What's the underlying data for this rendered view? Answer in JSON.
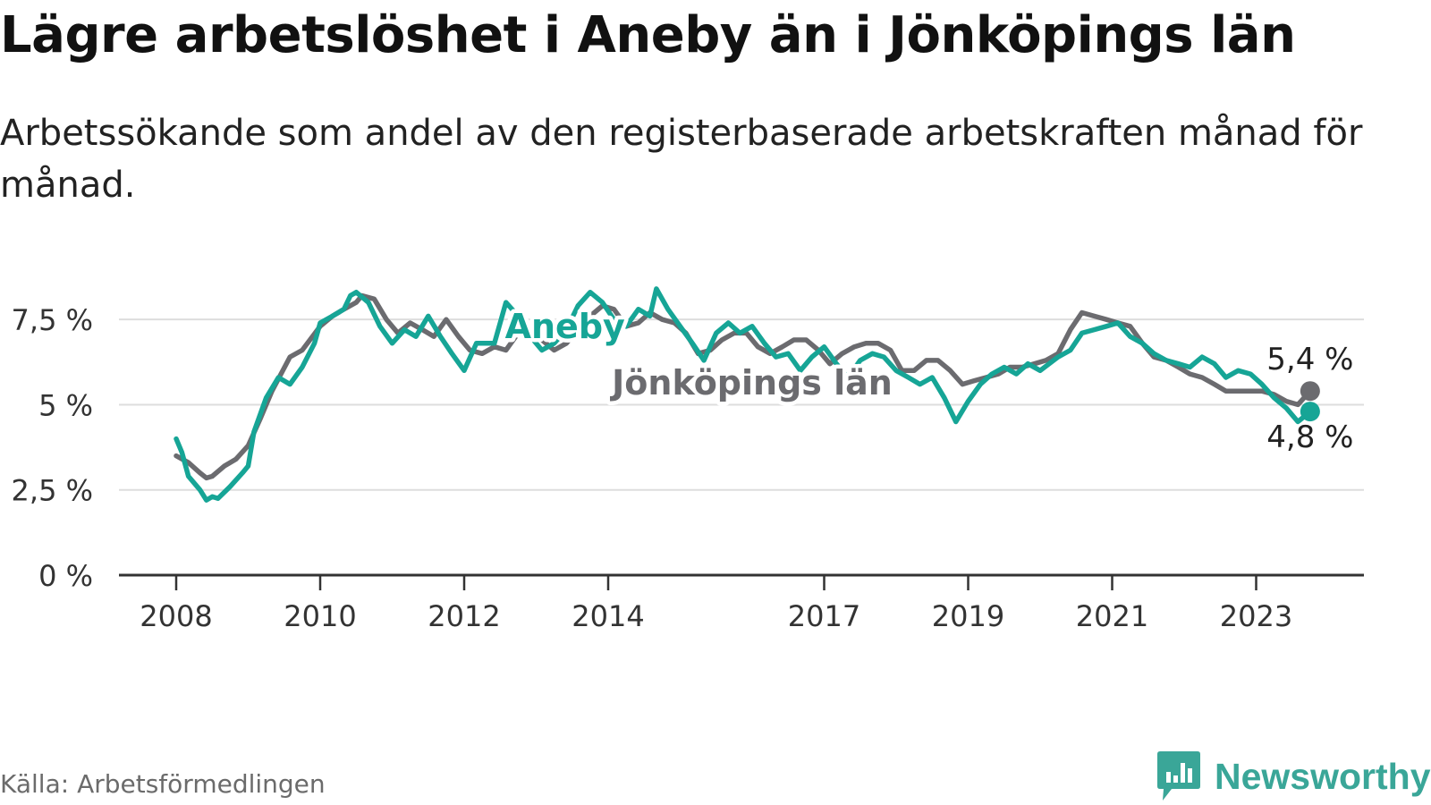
{
  "title": "Lägre arbetslöshet i Aneby än i Jönköpings län",
  "subtitle": "Arbetssökande som andel av den registerbaserade arbetskraften månad för månad.",
  "source": "Källa: Arbetsförmedlingen",
  "brand": "Newsworthy",
  "colors": {
    "aneby": "#16a596",
    "lan": "#6b6b6f",
    "grid": "#dddddd",
    "axis": "#333333",
    "brand": "#3aa698"
  },
  "chart_data": {
    "type": "line",
    "title": "Lägre arbetslöshet i Aneby än i Jönköpings län",
    "xlabel": "",
    "ylabel": "",
    "x_range": [
      2007.6,
      2024.2
    ],
    "ylim": [
      0,
      9
    ],
    "grid": true,
    "x_ticks": [
      {
        "value": 2008,
        "label": "2008"
      },
      {
        "value": 2010,
        "label": "2010"
      },
      {
        "value": 2012,
        "label": "2012"
      },
      {
        "value": 2014,
        "label": "2014"
      },
      {
        "value": 2017,
        "label": "2017"
      },
      {
        "value": 2019,
        "label": "2019"
      },
      {
        "value": 2021,
        "label": "2021"
      },
      {
        "value": 2023,
        "label": "2023"
      }
    ],
    "y_ticks": [
      {
        "value": 0,
        "label": "0 %"
      },
      {
        "value": 2.5,
        "label": "2,5 %"
      },
      {
        "value": 5,
        "label": "5 %"
      },
      {
        "value": 7.5,
        "label": "7,5 %"
      }
    ],
    "series": [
      {
        "name": "Jönköpings län",
        "label": "Jönköpings län",
        "label_at": [
          2016.0,
          5.3
        ],
        "end_label": "5,4 %",
        "end_value": 5.4,
        "points": [
          [
            2008.0,
            3.5
          ],
          [
            2008.17,
            3.3
          ],
          [
            2008.33,
            3.0
          ],
          [
            2008.42,
            2.85
          ],
          [
            2008.5,
            2.9
          ],
          [
            2008.67,
            3.2
          ],
          [
            2008.83,
            3.4
          ],
          [
            2009.0,
            3.8
          ],
          [
            2009.17,
            4.6
          ],
          [
            2009.33,
            5.4
          ],
          [
            2009.58,
            6.4
          ],
          [
            2009.75,
            6.6
          ],
          [
            2010.0,
            7.3
          ],
          [
            2010.17,
            7.6
          ],
          [
            2010.33,
            7.8
          ],
          [
            2010.5,
            8.0
          ],
          [
            2010.58,
            8.2
          ],
          [
            2010.75,
            8.1
          ],
          [
            2010.92,
            7.5
          ],
          [
            2011.08,
            7.1
          ],
          [
            2011.25,
            7.4
          ],
          [
            2011.42,
            7.2
          ],
          [
            2011.58,
            7.0
          ],
          [
            2011.75,
            7.5
          ],
          [
            2011.92,
            7.0
          ],
          [
            2012.08,
            6.6
          ],
          [
            2012.25,
            6.5
          ],
          [
            2012.42,
            6.7
          ],
          [
            2012.58,
            6.6
          ],
          [
            2012.75,
            7.1
          ],
          [
            2012.92,
            7.2
          ],
          [
            2013.08,
            6.9
          ],
          [
            2013.25,
            6.6
          ],
          [
            2013.42,
            6.8
          ],
          [
            2013.58,
            7.2
          ],
          [
            2013.75,
            7.6
          ],
          [
            2013.92,
            7.9
          ],
          [
            2014.08,
            7.8
          ],
          [
            2014.25,
            7.3
          ],
          [
            2014.42,
            7.4
          ],
          [
            2014.58,
            7.7
          ],
          [
            2014.75,
            7.5
          ],
          [
            2014.92,
            7.4
          ],
          [
            2015.08,
            7.1
          ],
          [
            2015.25,
            6.5
          ],
          [
            2015.42,
            6.6
          ],
          [
            2015.58,
            6.9
          ],
          [
            2015.75,
            7.1
          ],
          [
            2015.92,
            7.1
          ],
          [
            2016.08,
            6.7
          ],
          [
            2016.25,
            6.5
          ],
          [
            2016.42,
            6.7
          ],
          [
            2016.58,
            6.9
          ],
          [
            2016.75,
            6.9
          ],
          [
            2016.92,
            6.6
          ],
          [
            2017.08,
            6.2
          ],
          [
            2017.25,
            6.5
          ],
          [
            2017.42,
            6.7
          ],
          [
            2017.58,
            6.8
          ],
          [
            2017.75,
            6.8
          ],
          [
            2017.92,
            6.6
          ],
          [
            2018.08,
            6.0
          ],
          [
            2018.25,
            6.0
          ],
          [
            2018.42,
            6.3
          ],
          [
            2018.58,
            6.3
          ],
          [
            2018.75,
            6.0
          ],
          [
            2018.92,
            5.6
          ],
          [
            2019.08,
            5.7
          ],
          [
            2019.25,
            5.8
          ],
          [
            2019.42,
            5.9
          ],
          [
            2019.58,
            6.1
          ],
          [
            2019.75,
            6.1
          ],
          [
            2019.92,
            6.2
          ],
          [
            2020.08,
            6.3
          ],
          [
            2020.25,
            6.5
          ],
          [
            2020.42,
            7.2
          ],
          [
            2020.58,
            7.7
          ],
          [
            2020.75,
            7.6
          ],
          [
            2020.92,
            7.5
          ],
          [
            2021.08,
            7.4
          ],
          [
            2021.25,
            7.3
          ],
          [
            2021.42,
            6.8
          ],
          [
            2021.58,
            6.4
          ],
          [
            2021.75,
            6.3
          ],
          [
            2021.92,
            6.1
          ],
          [
            2022.08,
            5.9
          ],
          [
            2022.25,
            5.8
          ],
          [
            2022.42,
            5.6
          ],
          [
            2022.58,
            5.4
          ],
          [
            2022.75,
            5.4
          ],
          [
            2022.92,
            5.4
          ],
          [
            2023.08,
            5.4
          ],
          [
            2023.25,
            5.3
          ],
          [
            2023.42,
            5.1
          ],
          [
            2023.58,
            5.0
          ],
          [
            2023.75,
            5.4
          ]
        ]
      },
      {
        "name": "Aneby",
        "label": "Aneby",
        "label_at": [
          2013.4,
          6.95
        ],
        "end_label": "4,8 %",
        "end_value": 4.8,
        "points": [
          [
            2008.0,
            4.0
          ],
          [
            2008.08,
            3.6
          ],
          [
            2008.17,
            2.9
          ],
          [
            2008.33,
            2.5
          ],
          [
            2008.42,
            2.2
          ],
          [
            2008.5,
            2.3
          ],
          [
            2008.58,
            2.25
          ],
          [
            2008.75,
            2.6
          ],
          [
            2008.92,
            3.0
          ],
          [
            2009.0,
            3.2
          ],
          [
            2009.08,
            4.2
          ],
          [
            2009.25,
            5.2
          ],
          [
            2009.42,
            5.8
          ],
          [
            2009.58,
            5.6
          ],
          [
            2009.75,
            6.1
          ],
          [
            2009.92,
            6.8
          ],
          [
            2010.0,
            7.4
          ],
          [
            2010.17,
            7.6
          ],
          [
            2010.33,
            7.8
          ],
          [
            2010.42,
            8.2
          ],
          [
            2010.5,
            8.3
          ],
          [
            2010.67,
            8.0
          ],
          [
            2010.83,
            7.3
          ],
          [
            2011.0,
            6.8
          ],
          [
            2011.17,
            7.2
          ],
          [
            2011.33,
            7.0
          ],
          [
            2011.5,
            7.6
          ],
          [
            2011.67,
            7.0
          ],
          [
            2011.83,
            6.5
          ],
          [
            2012.0,
            6.0
          ],
          [
            2012.17,
            6.8
          ],
          [
            2012.42,
            6.8
          ],
          [
            2012.58,
            8.0
          ],
          [
            2012.75,
            7.6
          ],
          [
            2012.92,
            7.0
          ],
          [
            2013.08,
            6.6
          ],
          [
            2013.25,
            6.8
          ],
          [
            2013.42,
            7.2
          ],
          [
            2013.58,
            7.9
          ],
          [
            2013.75,
            8.3
          ],
          [
            2013.92,
            8.0
          ],
          [
            2014.08,
            7.5
          ],
          [
            2014.25,
            7.3
          ],
          [
            2014.42,
            7.8
          ],
          [
            2014.58,
            7.6
          ],
          [
            2014.67,
            8.4
          ],
          [
            2014.83,
            7.8
          ],
          [
            2015.0,
            7.3
          ],
          [
            2015.17,
            6.8
          ],
          [
            2015.33,
            6.3
          ],
          [
            2015.5,
            7.1
          ],
          [
            2015.67,
            7.4
          ],
          [
            2015.83,
            7.1
          ],
          [
            2016.0,
            7.3
          ],
          [
            2016.17,
            6.8
          ],
          [
            2016.33,
            6.4
          ],
          [
            2016.5,
            6.5
          ],
          [
            2016.67,
            6.0
          ],
          [
            2016.83,
            6.4
          ],
          [
            2017.0,
            6.7
          ],
          [
            2017.17,
            6.2
          ],
          [
            2017.33,
            5.8
          ],
          [
            2017.5,
            6.3
          ],
          [
            2017.67,
            6.5
          ],
          [
            2017.83,
            6.4
          ],
          [
            2018.0,
            6.0
          ],
          [
            2018.17,
            5.8
          ],
          [
            2018.33,
            5.6
          ],
          [
            2018.5,
            5.8
          ],
          [
            2018.67,
            5.2
          ],
          [
            2018.83,
            4.5
          ],
          [
            2019.0,
            5.1
          ],
          [
            2019.17,
            5.6
          ],
          [
            2019.33,
            5.9
          ],
          [
            2019.5,
            6.1
          ],
          [
            2019.67,
            5.9
          ],
          [
            2019.83,
            6.2
          ],
          [
            2020.0,
            6.0
          ],
          [
            2020.25,
            6.4
          ],
          [
            2020.42,
            6.6
          ],
          [
            2020.58,
            7.1
          ],
          [
            2020.75,
            7.2
          ],
          [
            2020.92,
            7.3
          ],
          [
            2021.08,
            7.4
          ],
          [
            2021.25,
            7.0
          ],
          [
            2021.42,
            6.8
          ],
          [
            2021.58,
            6.5
          ],
          [
            2021.75,
            6.3
          ],
          [
            2021.92,
            6.2
          ],
          [
            2022.08,
            6.1
          ],
          [
            2022.25,
            6.4
          ],
          [
            2022.42,
            6.2
          ],
          [
            2022.58,
            5.8
          ],
          [
            2022.75,
            6.0
          ],
          [
            2022.92,
            5.9
          ],
          [
            2023.08,
            5.6
          ],
          [
            2023.25,
            5.2
          ],
          [
            2023.42,
            4.9
          ],
          [
            2023.58,
            4.5
          ],
          [
            2023.75,
            4.8
          ]
        ]
      }
    ]
  }
}
